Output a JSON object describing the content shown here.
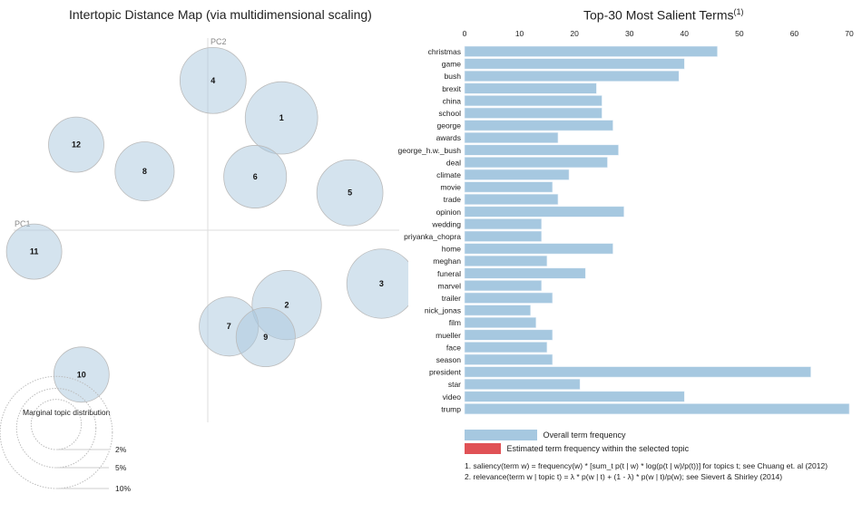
{
  "chart_data": [
    {
      "type": "scatter",
      "title": "Intertopic Distance Map (via multidimensional scaling)",
      "xlabel": "PC1",
      "ylabel": "PC2",
      "grid": false,
      "topics": [
        {
          "id": "1",
          "pc1": 0.14,
          "pc2": 0.21,
          "marginal_pct": 6.0
        },
        {
          "id": "2",
          "pc1": 0.15,
          "pc2": -0.14,
          "marginal_pct": 5.5
        },
        {
          "id": "3",
          "pc1": 0.33,
          "pc2": -0.1,
          "marginal_pct": 5.5
        },
        {
          "id": "4",
          "pc1": 0.01,
          "pc2": 0.28,
          "marginal_pct": 5.0
        },
        {
          "id": "5",
          "pc1": 0.27,
          "pc2": 0.07,
          "marginal_pct": 5.0
        },
        {
          "id": "6",
          "pc1": 0.09,
          "pc2": 0.1,
          "marginal_pct": 4.5
        },
        {
          "id": "7",
          "pc1": 0.04,
          "pc2": -0.18,
          "marginal_pct": 4.0
        },
        {
          "id": "8",
          "pc1": -0.12,
          "pc2": 0.11,
          "marginal_pct": 4.0
        },
        {
          "id": "9",
          "pc1": 0.11,
          "pc2": -0.2,
          "marginal_pct": 4.0
        },
        {
          "id": "10",
          "pc1": -0.24,
          "pc2": -0.27,
          "marginal_pct": 3.5
        },
        {
          "id": "11",
          "pc1": -0.33,
          "pc2": -0.04,
          "marginal_pct": 3.5
        },
        {
          "id": "12",
          "pc1": -0.25,
          "pc2": 0.16,
          "marginal_pct": 3.5
        }
      ],
      "marginal_legend": {
        "title": "Marginal topic distribution",
        "levels": [
          {
            "label": "2%",
            "pct": 2
          },
          {
            "label": "5%",
            "pct": 5
          },
          {
            "label": "10%",
            "pct": 10
          }
        ]
      }
    },
    {
      "type": "bar",
      "orientation": "horizontal",
      "title": "Top-30 Most Salient Terms",
      "title_superscript": "(1)",
      "xlim": [
        0,
        70
      ],
      "xticks": [
        0,
        10,
        20,
        30,
        40,
        50,
        60,
        70
      ],
      "categories": [
        "christmas",
        "game",
        "bush",
        "brexit",
        "china",
        "school",
        "george",
        "awards",
        "george_h.w._bush",
        "deal",
        "climate",
        "movie",
        "trade",
        "opinion",
        "wedding",
        "priyanka_chopra",
        "home",
        "meghan",
        "funeral",
        "marvel",
        "trailer",
        "nick_jonas",
        "film",
        "mueller",
        "face",
        "season",
        "president",
        "star",
        "video",
        "trump"
      ],
      "series": [
        {
          "name": "Overall term frequency",
          "color": "#a6c8e0",
          "values": [
            46,
            40,
            39,
            24,
            25,
            25,
            27,
            17,
            28,
            26,
            19,
            16,
            17,
            29,
            14,
            14,
            27,
            15,
            22,
            14,
            16,
            12,
            13,
            16,
            15,
            16,
            63,
            21,
            40,
            70
          ]
        }
      ],
      "legend": [
        {
          "label": "Overall term frequency",
          "color": "#a6c8e0"
        },
        {
          "label": "Estimated term frequency within the selected topic",
          "color": "#e05256"
        }
      ],
      "legend_position": "bottom-left",
      "footnotes": [
        "1. saliency(term w) = frequency(w) * [sum_t p(t | w) * log(p(t | w)/p(t))] for topics t; see Chuang et. al (2012)",
        "2. relevance(term w | topic t) = λ * p(w | t) + (1 - λ) * p(w | t)/p(w); see Sievert & Shirley (2014)"
      ]
    }
  ],
  "colors": {
    "circle_fill": "#a9c7de",
    "bar": "#a6c8e0",
    "topic_bar": "#e05256",
    "axis": "#cccccc"
  }
}
